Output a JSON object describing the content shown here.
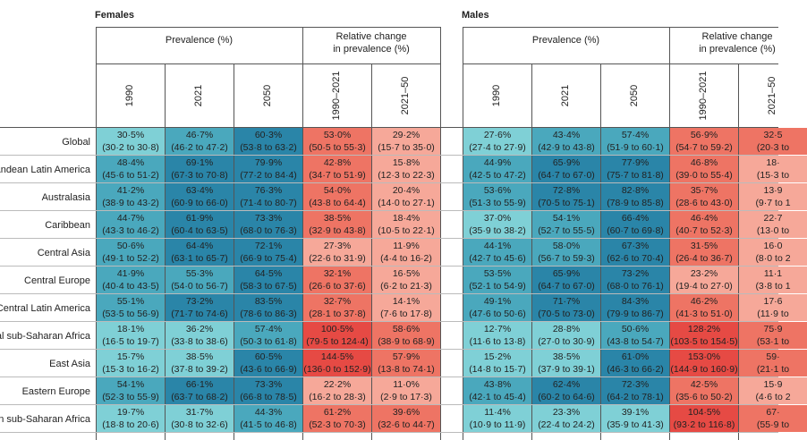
{
  "females_title": "Females",
  "males_title": "Males",
  "prevalence_header": "Prevalence (%)",
  "relchange_header_line1": "Relative change",
  "relchange_header_line2": "in prevalence (%)",
  "columns": [
    "1990",
    "2021",
    "2050",
    "1990–2021",
    "2021–50"
  ],
  "colors": {
    "prev_low": "#7fd0d6",
    "prev_mid": "#4aa8bd",
    "prev_high": "#2a85a8",
    "chg_low": "#f6a899",
    "chg_mid": "#ee7464",
    "chg_high": "#e64a44"
  },
  "rows": [
    {
      "label": "Global",
      "females": [
        [
          "30·5%",
          "(30·2 to 30·8)"
        ],
        [
          "46·7%",
          "(46·2 to 47·2)"
        ],
        [
          "60·3%",
          "(53·8 to 63·2)"
        ],
        [
          "53·0%",
          "(50·5 to 55·3)"
        ],
        [
          "29·2%",
          "(15·7 to 35·0)"
        ]
      ],
      "males": [
        [
          "27·6%",
          "(27·4 to 27·9)"
        ],
        [
          "43·4%",
          "(42·9 to 43·8)"
        ],
        [
          "57·4%",
          "(51·9 to 60·1)"
        ],
        [
          "56·9%",
          "(54·7 to 59·2)"
        ],
        [
          "32·5",
          "(20·3 to"
        ]
      ]
    },
    {
      "label": "Andean Latin America",
      "females": [
        [
          "48·4%",
          "(45·6 to 51·2)"
        ],
        [
          "69·1%",
          "(67·3 to 70·8)"
        ],
        [
          "79·9%",
          "(77·2 to 84·4)"
        ],
        [
          "42·8%",
          "(34·7 to 51·9)"
        ],
        [
          "15·8%",
          "(12·3 to 22·3)"
        ]
      ],
      "males": [
        [
          "44·9%",
          "(42·5 to 47·2)"
        ],
        [
          "65·9%",
          "(64·7 to 67·0)"
        ],
        [
          "77·9%",
          "(75·7 to 81·8)"
        ],
        [
          "46·8%",
          "(39·0 to 55·4)"
        ],
        [
          "18·",
          "(15·3 to"
        ]
      ]
    },
    {
      "label": "Australasia",
      "females": [
        [
          "41·2%",
          "(38·9 to 43·2)"
        ],
        [
          "63·4%",
          "(60·9 to 66·0)"
        ],
        [
          "76·3%",
          "(71·4 to 80·7)"
        ],
        [
          "54·0%",
          "(43·8 to 64·4)"
        ],
        [
          "20·4%",
          "(14·0 to 27·1)"
        ]
      ],
      "males": [
        [
          "53·6%",
          "(51·3 to 55·9)"
        ],
        [
          "72·8%",
          "(70·5 to 75·1)"
        ],
        [
          "82·8%",
          "(78·9 to 85·8)"
        ],
        [
          "35·7%",
          "(28·6 to 43·0)"
        ],
        [
          "13·9",
          "(9·7 to 1"
        ]
      ]
    },
    {
      "label": "Caribbean",
      "females": [
        [
          "44·7%",
          "(43·3 to 46·2)"
        ],
        [
          "61·9%",
          "(60·4 to 63·5)"
        ],
        [
          "73·3%",
          "(68·0 to 76·3)"
        ],
        [
          "38·5%",
          "(32·9 to 43·8)"
        ],
        [
          "18·4%",
          "(10·5 to 22·1)"
        ]
      ],
      "males": [
        [
          "37·0%",
          "(35·9 to 38·2)"
        ],
        [
          "54·1%",
          "(52·7 to 55·5)"
        ],
        [
          "66·4%",
          "(60·7 to 69·8)"
        ],
        [
          "46·4%",
          "(40·7 to 52·3)"
        ],
        [
          "22·7",
          "(13·0 to"
        ]
      ]
    },
    {
      "label": "Central Asia",
      "females": [
        [
          "50·6%",
          "(49·1 to 52·2)"
        ],
        [
          "64·4%",
          "(63·1 to 65·7)"
        ],
        [
          "72·1%",
          "(66·9 to 75·4)"
        ],
        [
          "27·3%",
          "(22·6 to 31·9)"
        ],
        [
          "11·9%",
          "(4·4 to 16·2)"
        ]
      ],
      "males": [
        [
          "44·1%",
          "(42·7 to 45·6)"
        ],
        [
          "58·0%",
          "(56·7 to 59·3)"
        ],
        [
          "67·3%",
          "(62·6 to 70·4)"
        ],
        [
          "31·5%",
          "(26·4 to 36·7)"
        ],
        [
          "16·0",
          "(8·0 to 2"
        ]
      ]
    },
    {
      "label": "Central Europe",
      "females": [
        [
          "41·9%",
          "(40·4 to 43·5)"
        ],
        [
          "55·3%",
          "(54·0 to 56·7)"
        ],
        [
          "64·5%",
          "(58·3 to 67·5)"
        ],
        [
          "32·1%",
          "(26·6 to 37·6)"
        ],
        [
          "16·5%",
          "(6·2 to 21·3)"
        ]
      ],
      "males": [
        [
          "53·5%",
          "(52·1 to 54·9)"
        ],
        [
          "65·9%",
          "(64·7 to 67·0)"
        ],
        [
          "73·2%",
          "(68·0 to 76·1)"
        ],
        [
          "23·2%",
          "(19·4 to 27·0)"
        ],
        [
          "11·1",
          "(3·8 to 1"
        ]
      ]
    },
    {
      "label": "Central Latin America",
      "females": [
        [
          "55·1%",
          "(53·5 to 56·9)"
        ],
        [
          "73·2%",
          "(71·7 to 74·6)"
        ],
        [
          "83·5%",
          "(78·6 to 86·3)"
        ],
        [
          "32·7%",
          "(28·1 to 37·8)"
        ],
        [
          "14·1%",
          "(7·6 to 17·8)"
        ]
      ],
      "males": [
        [
          "49·1%",
          "(47·6 to 50·6)"
        ],
        [
          "71·7%",
          "(70·5 to 73·0)"
        ],
        [
          "84·3%",
          "(79·9 to 86·7)"
        ],
        [
          "46·2%",
          "(41·3 to 51·0)"
        ],
        [
          "17·6",
          "(11·9 to"
        ]
      ]
    },
    {
      "label": "Central sub-Saharan Africa",
      "females": [
        [
          "18·1%",
          "(16·5 to 19·7)"
        ],
        [
          "36·2%",
          "(33·8 to 38·6)"
        ],
        [
          "57·4%",
          "(50·3 to 61·8)"
        ],
        [
          "100·5%",
          "(79·5 to 124·4)"
        ],
        [
          "58·6%",
          "(38·9 to 68·9)"
        ]
      ],
      "males": [
        [
          "12·7%",
          "(11·6 to 13·8)"
        ],
        [
          "28·8%",
          "(27·0 to 30·9)"
        ],
        [
          "50·6%",
          "(43·8 to 54·7)"
        ],
        [
          "128·2%",
          "(103·5 to 154·5)"
        ],
        [
          "75·9",
          "(53·1 to"
        ]
      ]
    },
    {
      "label": "East Asia",
      "females": [
        [
          "15·7%",
          "(15·3 to 16·2)"
        ],
        [
          "38·5%",
          "(37·8 to 39·2)"
        ],
        [
          "60·5%",
          "(43·6 to 66·9)"
        ],
        [
          "144·5%",
          "(136·0 to 152·9)"
        ],
        [
          "57·9%",
          "(13·8 to 74·1)"
        ]
      ],
      "males": [
        [
          "15·2%",
          "(14·8 to 15·7)"
        ],
        [
          "38·5%",
          "(37·9 to 39·1)"
        ],
        [
          "61·0%",
          "(46·3 to 66·2)"
        ],
        [
          "153·0%",
          "(144·9 to 160·9)"
        ],
        [
          "59·",
          "(21·1 to"
        ]
      ]
    },
    {
      "label": "Eastern Europe",
      "females": [
        [
          "54·1%",
          "(52·3 to 55·9)"
        ],
        [
          "66·1%",
          "(63·7 to 68·2)"
        ],
        [
          "73·3%",
          "(66·8 to 78·5)"
        ],
        [
          "22·2%",
          "(16·2 to 28·3)"
        ],
        [
          "11·0%",
          "(2·9 to 17·3)"
        ]
      ],
      "males": [
        [
          "43·8%",
          "(42·1 to 45·4)"
        ],
        [
          "62·4%",
          "(60·2 to 64·6)"
        ],
        [
          "72·3%",
          "(64·2 to 78·1)"
        ],
        [
          "42·5%",
          "(35·6 to 50·2)"
        ],
        [
          "15·9",
          "(4·6 to 2"
        ]
      ]
    },
    {
      "label": "Eastern sub-Saharan Africa",
      "females": [
        [
          "19·7%",
          "(18·8 to 20·6)"
        ],
        [
          "31·7%",
          "(30·8 to 32·6)"
        ],
        [
          "44·3%",
          "(41·5 to 46·8)"
        ],
        [
          "61·2%",
          "(52·3 to 70·3)"
        ],
        [
          "39·6%",
          "(32·6 to 44·7)"
        ]
      ],
      "males": [
        [
          "11·4%",
          "(10·9 to 11·9)"
        ],
        [
          "23·3%",
          "(22·4 to 24·2)"
        ],
        [
          "39·1%",
          "(35·9 to 41·3)"
        ],
        [
          "104·5%",
          "(93·2 to 116·8)"
        ],
        [
          "67·",
          "(55·9 to"
        ]
      ]
    }
  ]
}
